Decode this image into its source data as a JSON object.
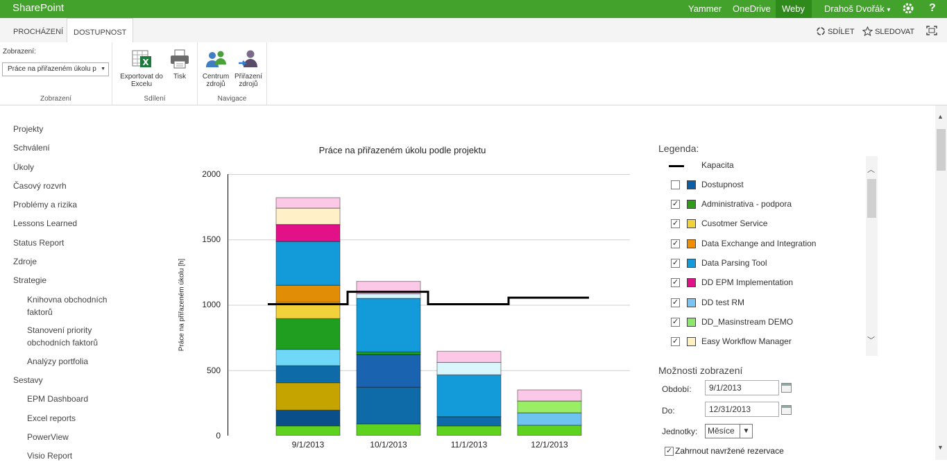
{
  "suitebar": {
    "brand": "SharePoint",
    "links": [
      "Yammer",
      "OneDrive",
      "Weby"
    ],
    "user": "Drahoš Dvořák",
    "user_caret": "▾",
    "gear_icon": "gear-icon",
    "help": "?"
  },
  "tabs": {
    "browse": "PROCHÁZENÍ",
    "availability": "DOSTUPNOST",
    "share": "SDÍLET",
    "follow": "SLEDOVAT"
  },
  "ribbon": {
    "view_label": "Zobrazení:",
    "view_select": "Práce na přiřazeném úkolu p",
    "groups": {
      "view": "Zobrazení",
      "share": "Sdílení",
      "nav": "Navigace"
    },
    "buttons": {
      "export_l1": "Exportovat do",
      "export_l2": "Excelu",
      "print": "Tisk",
      "center_l1": "Centrum",
      "center_l2": "zdrojů",
      "assign_l1": "Přiřazení",
      "assign_l2": "zdrojů"
    }
  },
  "leftnav": {
    "items": [
      "Projekty",
      "Schválení",
      "Úkoly",
      "Časový rozvrh",
      "Problémy a rizika",
      "Lessons Learned",
      "Status Report",
      "Zdroje",
      "Strategie",
      "Knihovna obchodních faktorů",
      "Stanovení priority obchodních faktorů",
      "Analýzy portfolia",
      "Sestavy",
      "EPM Dashboard",
      "Excel reports",
      "PowerView",
      "Visio Report"
    ],
    "k1": "Knihovna obchodních",
    "k2": "faktorů",
    "s1": "Stanovení priority",
    "s2": "obchodních faktorů"
  },
  "chart_data": {
    "type": "bar",
    "stacked": true,
    "title": "Práce na přiřazeném úkolu podle projektu",
    "ylabel": "Práce na přiřazeném úkolu [h]",
    "xlabel": "",
    "ylim": [
      0,
      2000
    ],
    "yticks": [
      "0",
      "500",
      "1000",
      "1500",
      "2000"
    ],
    "grid": true,
    "categories": [
      "9/1/2013",
      "10/1/2013",
      "11/1/2013",
      "12/1/2013"
    ],
    "series": [
      {
        "color": "#5fd11f",
        "values": [
          75,
          90,
          75,
          80
        ]
      },
      {
        "color": "#0a4f8a",
        "values": [
          120,
          0,
          0,
          0
        ]
      },
      {
        "color": "#c6a400",
        "values": [
          210,
          0,
          0,
          0
        ]
      },
      {
        "color": "#0f6ba8",
        "values": [
          130,
          280,
          70,
          0
        ]
      },
      {
        "color": "#1a63b0",
        "values": [
          0,
          250,
          0,
          0
        ]
      },
      {
        "color": "#6fd8f8",
        "values": [
          125,
          0,
          0,
          0
        ]
      },
      {
        "color": "#1f9e1f",
        "values": [
          235,
          20,
          0,
          0
        ]
      },
      {
        "color": "#f2d23b",
        "values": [
          125,
          0,
          0,
          0
        ]
      },
      {
        "color": "#e18e06",
        "values": [
          130,
          0,
          0,
          0
        ]
      },
      {
        "color": "#129ad9",
        "values": [
          335,
          410,
          320,
          0
        ]
      },
      {
        "color": "#6ec3f1",
        "values": [
          0,
          0,
          0,
          95
        ]
      },
      {
        "color": "#e21187",
        "values": [
          130,
          0,
          0,
          0
        ]
      },
      {
        "color": "#99ee66",
        "values": [
          0,
          0,
          0,
          90
        ]
      },
      {
        "color": "#d9f6fc",
        "values": [
          0,
          35,
          95,
          0
        ]
      },
      {
        "color": "#fff0c8",
        "values": [
          125,
          0,
          0,
          0
        ]
      },
      {
        "color": "#fcc8e8",
        "values": [
          80,
          95,
          85,
          85
        ]
      }
    ],
    "capacity": {
      "name": "Kapacita",
      "values": [
        1005,
        1100,
        1005,
        1055
      ]
    }
  },
  "legend": {
    "title": "Legenda:",
    "items": [
      {
        "name": "Kapacita",
        "kind": "line"
      },
      {
        "name": "Dostupnost",
        "checked": false,
        "color": "#0a5ea8"
      },
      {
        "name": "Administrativa - podpora",
        "checked": true,
        "color": "#2e9c17"
      },
      {
        "name": "Cusotmer Service",
        "checked": true,
        "color": "#f2d23b"
      },
      {
        "name": "Data Exchange and Integration",
        "checked": true,
        "color": "#f08e00"
      },
      {
        "name": "Data Parsing Tool",
        "checked": true,
        "color": "#129ad9"
      },
      {
        "name": "DD EPM Implementation",
        "checked": true,
        "color": "#e21187"
      },
      {
        "name": "DD test RM",
        "checked": true,
        "color": "#78c4f2"
      },
      {
        "name": "DD_Masinstream DEMO",
        "checked": true,
        "color": "#8ce86a"
      },
      {
        "name": "Easy Workflow Manager",
        "checked": true,
        "color": "#fff0c0"
      }
    ],
    "check_mark": "✓",
    "up": "︿",
    "down": "﹀"
  },
  "options": {
    "title": "Možnosti zobrazení",
    "period_label": "Období:",
    "period_value": "9/1/2013",
    "to_label": "Do:",
    "to_value": "12/31/2013",
    "units_label": "Jednotky:",
    "units_value": "Měsíce",
    "units_arrow": "▼",
    "include_label": "Zahrnout navržené rezervace",
    "include_checked": true
  }
}
